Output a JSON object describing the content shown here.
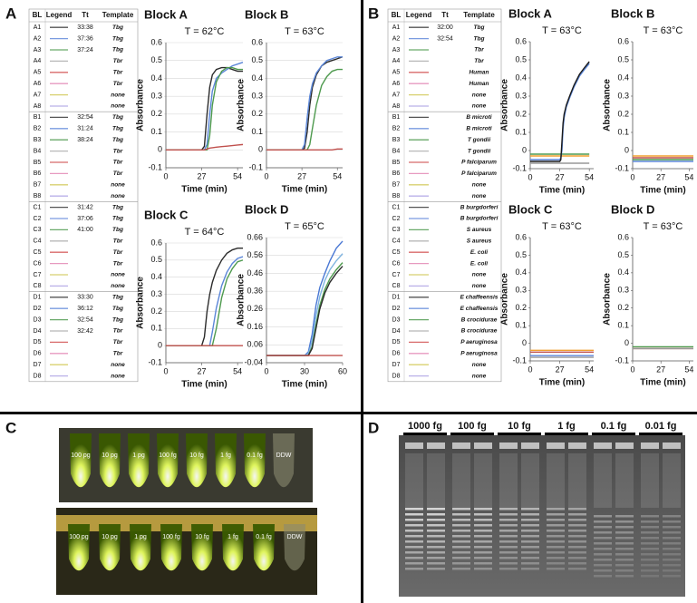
{
  "chart_data": [
    {
      "type": "line",
      "title": "Block A",
      "subtitle": "T = 62°C",
      "y_label": "Absorbance",
      "x_label": "Time (min)",
      "xlim": [
        0,
        58
      ],
      "xticks": [
        0,
        27,
        54
      ],
      "ylim": [
        -0.1,
        0.6
      ],
      "yticks": [
        -0.1,
        0,
        0.1,
        0.2,
        0.3,
        0.4,
        0.5,
        0.6
      ],
      "grid": true,
      "x": [
        0,
        27,
        29,
        31,
        33,
        35,
        38,
        42,
        46,
        50,
        54,
        58
      ],
      "series": [
        {
          "color": "#2b2b2b",
          "values": [
            0,
            0,
            0.02,
            0.2,
            0.35,
            0.42,
            0.45,
            0.46,
            0.46,
            0.45,
            0.44,
            0.44
          ]
        },
        {
          "color": "#5b86d8",
          "values": [
            0,
            0,
            0,
            0.03,
            0.2,
            0.33,
            0.4,
            0.43,
            0.45,
            0.47,
            0.48,
            0.49
          ]
        },
        {
          "color": "#4e9a4e",
          "values": [
            0,
            0,
            0,
            0,
            0.08,
            0.25,
            0.38,
            0.44,
            0.46,
            0.46,
            0.45,
            0.45
          ]
        },
        {
          "color": "#c0504d",
          "values": [
            0,
            0,
            0,
            0.005,
            0.01,
            0.012,
            0.015,
            0.018,
            0.021,
            0.024,
            0.027,
            0.03
          ]
        }
      ]
    },
    {
      "type": "line",
      "title": "Block B",
      "subtitle": "T = 63°C",
      "y_label": "Absorbance",
      "x_label": "Time (min)",
      "xlim": [
        0,
        58
      ],
      "xticks": [
        0,
        27,
        54
      ],
      "ylim": [
        -0.1,
        0.6
      ],
      "yticks": [
        -0.1,
        0,
        0.1,
        0.2,
        0.3,
        0.4,
        0.5,
        0.6
      ],
      "grid": true,
      "x": [
        0,
        27,
        29,
        31,
        33,
        35,
        38,
        42,
        46,
        50,
        54,
        58
      ],
      "series": [
        {
          "color": "#2b2b2b",
          "values": [
            0,
            0,
            0.01,
            0.1,
            0.25,
            0.35,
            0.42,
            0.47,
            0.49,
            0.5,
            0.51,
            0.52
          ]
        },
        {
          "color": "#5b86d8",
          "values": [
            0,
            0,
            0.03,
            0.18,
            0.3,
            0.37,
            0.43,
            0.47,
            0.5,
            0.51,
            0.52,
            0.52
          ]
        },
        {
          "color": "#4e9a4e",
          "values": [
            0,
            0,
            0,
            0,
            0.03,
            0.12,
            0.25,
            0.36,
            0.41,
            0.44,
            0.45,
            0.45
          ]
        },
        {
          "color": "#c0504d",
          "values": [
            0,
            0,
            0,
            0,
            0,
            0,
            0,
            0,
            0,
            0,
            0.005,
            0.005
          ]
        }
      ]
    },
    {
      "type": "line",
      "title": "Block C",
      "subtitle": "T = 64°C",
      "y_label": "Absorbance",
      "x_label": "Time (min)",
      "xlim": [
        0,
        58
      ],
      "xticks": [
        0,
        27,
        54
      ],
      "ylim": [
        -0.1,
        0.6
      ],
      "yticks": [
        -0.1,
        0,
        0.1,
        0.2,
        0.3,
        0.4,
        0.5,
        0.6
      ],
      "grid": true,
      "x": [
        0,
        27,
        29,
        31,
        33,
        35,
        38,
        42,
        46,
        50,
        54,
        58
      ],
      "series": [
        {
          "color": "#2b2b2b",
          "values": [
            0,
            0,
            0.05,
            0.2,
            0.3,
            0.37,
            0.44,
            0.5,
            0.54,
            0.56,
            0.57,
            0.57
          ]
        },
        {
          "color": "#5b86d8",
          "values": [
            0,
            0,
            0,
            0,
            0,
            0.08,
            0.22,
            0.35,
            0.43,
            0.48,
            0.51,
            0.52
          ]
        },
        {
          "color": "#4e9a4e",
          "values": [
            0,
            0,
            0,
            0,
            0,
            0,
            0.1,
            0.28,
            0.39,
            0.45,
            0.49,
            0.5
          ]
        },
        {
          "color": "#c0504d",
          "values": [
            0,
            0,
            0,
            0,
            0,
            0,
            0,
            0,
            0,
            0,
            0,
            0
          ]
        }
      ]
    },
    {
      "type": "line",
      "title": "Block D",
      "subtitle": "T = 65°C",
      "y_label": "Absorbance",
      "x_label": "Time (min)",
      "xlim": [
        0,
        60
      ],
      "xticks": [
        0,
        30,
        60
      ],
      "ylim": [
        -0.04,
        0.66
      ],
      "yticks": [
        -0.04,
        0.06,
        0.16,
        0.26,
        0.36,
        0.46,
        0.56,
        0.66
      ],
      "grid": true,
      "x": [
        0,
        30,
        33,
        36,
        39,
        42,
        46,
        50,
        55,
        60
      ],
      "series": [
        {
          "color": "#4a78d4",
          "values": [
            0,
            0,
            0.02,
            0.12,
            0.28,
            0.38,
            0.46,
            0.53,
            0.6,
            0.64
          ]
        },
        {
          "color": "#7fb4e0",
          "values": [
            0,
            0,
            0.01,
            0.08,
            0.22,
            0.33,
            0.42,
            0.48,
            0.53,
            0.57
          ]
        },
        {
          "color": "#4e9a4e",
          "values": [
            0,
            0,
            0,
            0.05,
            0.17,
            0.28,
            0.37,
            0.43,
            0.48,
            0.52
          ]
        },
        {
          "color": "#2b2b2b",
          "values": [
            0,
            0,
            0,
            0.04,
            0.15,
            0.26,
            0.35,
            0.41,
            0.46,
            0.5
          ]
        },
        {
          "color": "#c0504d",
          "values": [
            0,
            0,
            0,
            0,
            0,
            0,
            0,
            0,
            0,
            0
          ]
        }
      ]
    },
    {
      "type": "line",
      "title": "Block A",
      "subtitle": "T = 63°C",
      "y_label": "Absorbance",
      "x_label": "Time (min)",
      "xlim": [
        0,
        58
      ],
      "xticks": [
        0,
        27,
        54
      ],
      "ylim": [
        -0.1,
        0.6
      ],
      "yticks": [
        -0.1,
        0,
        0.1,
        0.2,
        0.3,
        0.4,
        0.5,
        0.6
      ],
      "grid": false,
      "x": [
        0,
        20,
        27,
        28,
        29,
        30,
        31,
        33,
        36,
        40,
        45,
        50,
        54
      ],
      "series": [
        {
          "color": "#f0a030",
          "values": [
            -0.03,
            -0.03,
            -0.03,
            -0.03,
            -0.03,
            -0.03,
            -0.03,
            -0.03,
            -0.03,
            -0.03,
            -0.03,
            -0.03,
            -0.03
          ]
        },
        {
          "color": "#4e9a4e",
          "values": [
            -0.02,
            -0.02,
            -0.02,
            -0.02,
            -0.02,
            -0.02,
            -0.02,
            -0.02,
            -0.02,
            -0.02,
            -0.02,
            -0.02,
            -0.02
          ]
        },
        {
          "color": "#999999",
          "values": [
            -0.07,
            -0.07,
            -0.07,
            -0.07,
            -0.07,
            -0.07,
            -0.07,
            -0.07,
            -0.07,
            -0.07,
            -0.07,
            -0.07,
            -0.07
          ]
        },
        {
          "color": "#5b86d8",
          "values": [
            -0.05,
            -0.05,
            -0.05,
            -0.04,
            0,
            0.12,
            0.18,
            0.24,
            0.29,
            0.35,
            0.41,
            0.45,
            0.48
          ]
        },
        {
          "color": "#1a1a1a",
          "values": [
            -0.06,
            -0.06,
            -0.06,
            -0.05,
            0.05,
            0.15,
            0.2,
            0.25,
            0.3,
            0.36,
            0.42,
            0.46,
            0.49
          ]
        }
      ]
    },
    {
      "type": "line",
      "title": "Block B",
      "subtitle": "T = 63°C",
      "y_label": "Absorbance",
      "x_label": "Time (min)",
      "xlim": [
        0,
        58
      ],
      "xticks": [
        0,
        27,
        54
      ],
      "ylim": [
        -0.1,
        0.6
      ],
      "yticks": [
        -0.1,
        0,
        0.1,
        0.2,
        0.3,
        0.4,
        0.5,
        0.6
      ],
      "grid": false,
      "x": [
        0,
        15,
        30,
        45,
        58
      ],
      "series": [
        {
          "color": "#f0a030",
          "values": [
            -0.03,
            -0.03,
            -0.03,
            -0.03,
            -0.03
          ]
        },
        {
          "color": "#4e9a4e",
          "values": [
            -0.05,
            -0.05,
            -0.05,
            -0.05,
            -0.05
          ]
        },
        {
          "color": "#c0504d",
          "values": [
            -0.04,
            -0.04,
            -0.04,
            -0.04,
            -0.04
          ]
        },
        {
          "color": "#5b86d8",
          "values": [
            -0.06,
            -0.06,
            -0.06,
            -0.06,
            -0.06
          ]
        }
      ]
    },
    {
      "type": "line",
      "title": "Block C",
      "subtitle": "T = 63°C",
      "y_label": "Absorbance",
      "x_label": "Time (min)",
      "xlim": [
        0,
        58
      ],
      "xticks": [
        0,
        27,
        54
      ],
      "ylim": [
        -0.1,
        0.6
      ],
      "yticks": [
        -0.1,
        0,
        0.1,
        0.2,
        0.3,
        0.4,
        0.5,
        0.6
      ],
      "grid": false,
      "x": [
        0,
        15,
        30,
        45,
        58
      ],
      "series": [
        {
          "color": "#f0a030",
          "values": [
            -0.04,
            -0.04,
            -0.04,
            -0.04,
            -0.04
          ]
        },
        {
          "color": "#c0504d",
          "values": [
            -0.05,
            -0.05,
            -0.05,
            -0.05,
            -0.05
          ]
        },
        {
          "color": "#5b86d8",
          "values": [
            -0.07,
            -0.07,
            -0.07,
            -0.07,
            -0.07
          ]
        },
        {
          "color": "#999999",
          "values": [
            -0.08,
            -0.08,
            -0.08,
            -0.08,
            -0.08
          ]
        }
      ]
    },
    {
      "type": "line",
      "title": "Block D",
      "subtitle": "T = 63°C",
      "y_label": "Absorbance",
      "x_label": "Time (min)",
      "xlim": [
        0,
        58
      ],
      "xticks": [
        0,
        27,
        54
      ],
      "ylim": [
        -0.1,
        0.6
      ],
      "yticks": [
        -0.1,
        0,
        0.1,
        0.2,
        0.3,
        0.4,
        0.5,
        0.6
      ],
      "grid": false,
      "x": [
        0,
        15,
        30,
        45,
        58
      ],
      "series": [
        {
          "color": "#4e9a4e",
          "values": [
            -0.02,
            -0.02,
            -0.02,
            -0.02,
            -0.02
          ]
        },
        {
          "color": "#c0504d",
          "values": [
            -0.03,
            -0.03,
            -0.03,
            -0.03,
            -0.03
          ]
        },
        {
          "color": "#999999",
          "values": [
            -0.03,
            -0.03,
            -0.03,
            -0.03,
            -0.03
          ]
        }
      ]
    }
  ],
  "panels": {
    "A": {
      "label": "A",
      "table": {
        "header": [
          "BL",
          "Legend",
          "Tt",
          "Template"
        ],
        "rows": [
          [
            "A1",
            "33:38",
            "Tbg"
          ],
          [
            "A2",
            "37:36",
            "Tbg"
          ],
          [
            "A3",
            "37:24",
            "Tbg"
          ],
          [
            "A4",
            null,
            "Tbr"
          ],
          [
            "A5",
            null,
            "Tbr"
          ],
          [
            "A6",
            null,
            "Tbr"
          ],
          [
            "A7",
            null,
            "none"
          ],
          [
            "A8",
            null,
            "none"
          ],
          [
            "B1",
            "32:54",
            "Tbg"
          ],
          [
            "B2",
            "31:24",
            "Tbg"
          ],
          [
            "B3",
            "38:24",
            "Tbg"
          ],
          [
            "B4",
            null,
            "Tbr"
          ],
          [
            "B5",
            null,
            "Tbr"
          ],
          [
            "B6",
            null,
            "Tbr"
          ],
          [
            "B7",
            null,
            "none"
          ],
          [
            "B8",
            null,
            "none"
          ],
          [
            "C1",
            "31:42",
            "Tbg"
          ],
          [
            "C2",
            "37:06",
            "Tbg"
          ],
          [
            "C3",
            "41:00",
            "Tbg"
          ],
          [
            "C4",
            null,
            "Tbr"
          ],
          [
            "C5",
            null,
            "Tbr"
          ],
          [
            "C6",
            null,
            "Tbr"
          ],
          [
            "C7",
            null,
            "none"
          ],
          [
            "C8",
            null,
            "none"
          ],
          [
            "D1",
            "33:30",
            "Tbg"
          ],
          [
            "D2",
            "36:12",
            "Tbg"
          ],
          [
            "D3",
            "32:54",
            "Tbg"
          ],
          [
            "D4",
            "32:42",
            "Tbr"
          ],
          [
            "D5",
            null,
            "Tbr"
          ],
          [
            "D6",
            null,
            "Tbr"
          ],
          [
            "D7",
            null,
            "none"
          ],
          [
            "D8",
            null,
            "none"
          ]
        ]
      }
    },
    "B": {
      "label": "B",
      "table": {
        "header": [
          "BL",
          "Legend",
          "Tt",
          "Template"
        ],
        "rows": [
          [
            "A1",
            "32:00",
            "Tbg"
          ],
          [
            "A2",
            "32:54",
            "Tbg"
          ],
          [
            "A3",
            null,
            "Tbr"
          ],
          [
            "A4",
            null,
            "Tbr"
          ],
          [
            "A5",
            null,
            "Human"
          ],
          [
            "A6",
            null,
            "Human"
          ],
          [
            "A7",
            null,
            "none"
          ],
          [
            "A8",
            null,
            "none"
          ],
          [
            "B1",
            null,
            "B microti"
          ],
          [
            "B2",
            null,
            "B microti"
          ],
          [
            "B3",
            null,
            "T gondii"
          ],
          [
            "B4",
            null,
            "T gondii"
          ],
          [
            "B5",
            null,
            "P falciparum"
          ],
          [
            "B6",
            null,
            "P falciparum"
          ],
          [
            "B7",
            null,
            "none"
          ],
          [
            "B8",
            null,
            "none"
          ],
          [
            "C1",
            null,
            "B burgdorferi"
          ],
          [
            "C2",
            null,
            "B burgdorferi"
          ],
          [
            "C3",
            null,
            "S aureus"
          ],
          [
            "C4",
            null,
            "S aureus"
          ],
          [
            "C5",
            null,
            "E. coli"
          ],
          [
            "C6",
            null,
            "E. coli"
          ],
          [
            "C7",
            null,
            "none"
          ],
          [
            "C8",
            null,
            "none"
          ],
          [
            "D1",
            null,
            "E chaffeensis"
          ],
          [
            "D2",
            null,
            "E chaffeensis"
          ],
          [
            "D3",
            null,
            "B crocidurae"
          ],
          [
            "D4",
            null,
            "B crocidurae"
          ],
          [
            "D5",
            null,
            "P aeruginosa"
          ],
          [
            "D6",
            null,
            "P aeruginosa"
          ],
          [
            "D7",
            null,
            "none"
          ],
          [
            "D8",
            null,
            "none"
          ]
        ]
      }
    },
    "C": {
      "label": "C",
      "tubes": [
        "100 pg",
        "10 pg",
        "1 pg",
        "100 fg",
        "10 fg",
        "1 fg",
        "0.1 fg",
        "DDW"
      ]
    },
    "D": {
      "label": "D",
      "lanes": [
        "1000 fg",
        "100 fg",
        "10 fg",
        "1 fg",
        "0.1 fg",
        "0.01 fg"
      ]
    }
  },
  "legend_colors": [
    "#555555",
    "#7a9be0",
    "#6aaa6a",
    "#b8b8b8",
    "#d86a6a",
    "#e79ac0",
    "#d8d070",
    "#b9b0e8"
  ]
}
